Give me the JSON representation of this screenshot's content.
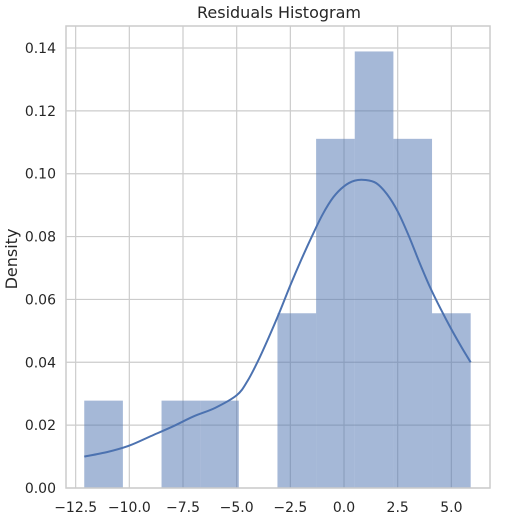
{
  "chart_data": {
    "type": "histogram",
    "title": "Residuals Histogram",
    "xlabel": "",
    "ylabel": "Density",
    "xlim": [
      -12.95,
      6.8
    ],
    "ylim": [
      0,
      0.147
    ],
    "x_ticks": [
      -12.5,
      -10.0,
      -7.5,
      -5.0,
      -2.5,
      0.0,
      2.5,
      5.0
    ],
    "x_tick_labels": [
      "−12.5",
      "−10.0",
      "−7.5",
      "−5.0",
      "−2.5",
      "0.0",
      "2.5",
      "5.0"
    ],
    "y_ticks": [
      0.0,
      0.02,
      0.04,
      0.06,
      0.08,
      0.1,
      0.12,
      0.14
    ],
    "y_tick_labels": [
      "0.00",
      "0.02",
      "0.04",
      "0.06",
      "0.08",
      "0.10",
      "0.12",
      "0.14"
    ],
    "grid": true,
    "bar_color": "#4c72b0",
    "bar_opacity": 0.5,
    "line_color": "#4c72b0",
    "bins": [
      {
        "x0": -12.1,
        "x1": -10.3,
        "density": 0.0278
      },
      {
        "x0": -10.3,
        "x1": -8.5,
        "density": 0.0
      },
      {
        "x0": -8.5,
        "x1": -6.7,
        "density": 0.0278
      },
      {
        "x0": -6.7,
        "x1": -4.9,
        "density": 0.0278
      },
      {
        "x0": -4.9,
        "x1": -3.1,
        "density": 0.0
      },
      {
        "x0": -3.1,
        "x1": -1.3,
        "density": 0.0556
      },
      {
        "x0": -1.3,
        "x1": 0.5,
        "density": 0.1111
      },
      {
        "x0": 0.5,
        "x1": 2.3,
        "density": 0.1389
      },
      {
        "x0": 2.3,
        "x1": 4.1,
        "density": 0.1111
      },
      {
        "x0": 4.1,
        "x1": 5.9,
        "density": 0.0556
      }
    ],
    "kde": {
      "x": [
        -12.1,
        -11.0,
        -10.0,
        -9.0,
        -8.0,
        -7.0,
        -6.0,
        -5.0,
        -4.5,
        -4.0,
        -3.5,
        -3.0,
        -2.5,
        -2.0,
        -1.5,
        -1.0,
        -0.5,
        0.0,
        0.5,
        1.0,
        1.5,
        2.0,
        2.5,
        3.0,
        3.5,
        4.0,
        4.5,
        5.0,
        5.5,
        5.9
      ],
      "y": [
        0.01,
        0.0115,
        0.0135,
        0.0165,
        0.0195,
        0.0228,
        0.0255,
        0.0295,
        0.034,
        0.0405,
        0.048,
        0.056,
        0.0645,
        0.0725,
        0.08,
        0.087,
        0.0925,
        0.096,
        0.0978,
        0.098,
        0.097,
        0.0935,
        0.088,
        0.0805,
        0.072,
        0.064,
        0.057,
        0.0505,
        0.0445,
        0.04
      ]
    }
  }
}
